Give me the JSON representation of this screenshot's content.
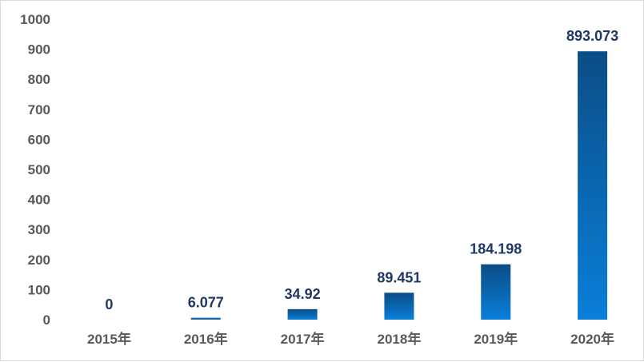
{
  "chart_data": {
    "type": "bar",
    "categories": [
      "2015年",
      "2016年",
      "2017年",
      "2018年",
      "2019年",
      "2020年"
    ],
    "values": [
      0,
      6.077,
      34.92,
      89.451,
      184.198,
      893.073
    ],
    "data_labels": [
      "0",
      "6.077",
      "34.92",
      "89.451",
      "184.198",
      "893.073"
    ],
    "title": "",
    "xlabel": "",
    "ylabel": "",
    "ylim": [
      0,
      1000
    ],
    "yticks": [
      0,
      100,
      200,
      300,
      400,
      500,
      600,
      700,
      800,
      900,
      1000
    ],
    "grid": false,
    "legend": "none",
    "colors": {
      "bar_top": "#0b4d86",
      "bar_bottom": "#0a7fd9",
      "label": "#1f3864",
      "tick": "#595959"
    }
  }
}
